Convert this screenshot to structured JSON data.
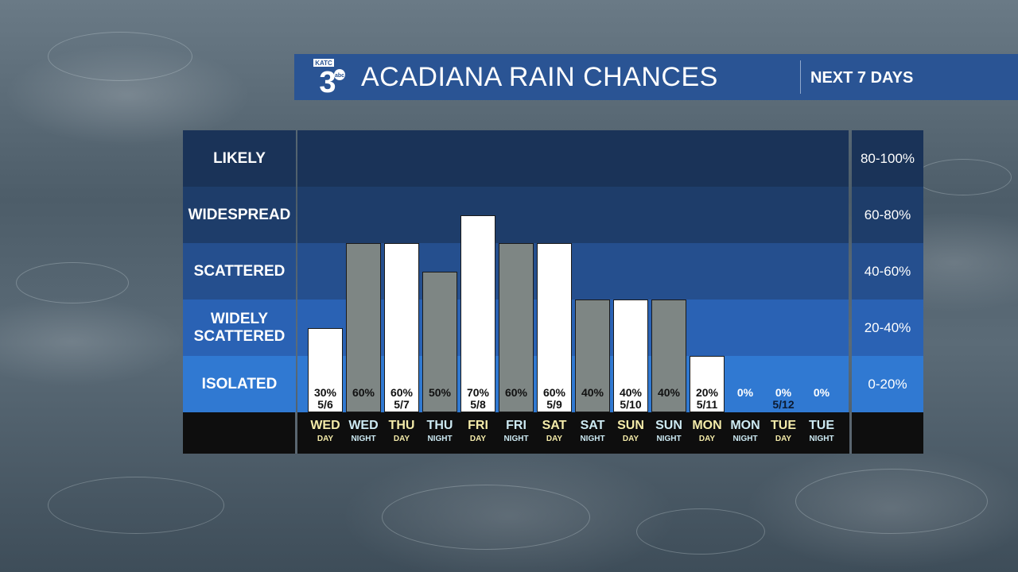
{
  "header": {
    "logo_text": "KATC 3 abc",
    "title": "ACADIANA RAIN CHANCES",
    "subtitle": "NEXT 7 DAYS"
  },
  "colors": {
    "header_bg": "#2a5494",
    "band_likely": "#1a3358",
    "band_widespread": "#1e3d6a",
    "band_scattered": "#254f8e",
    "band_widely_scattered": "#2a62b4",
    "band_isolated": "#3079d2",
    "day_bar": "#ffffff",
    "night_bar": "#7e8684",
    "day_label": "#f4eba9",
    "night_label": "#cdeaf3"
  },
  "chart_data": {
    "type": "bar",
    "title": "ACADIANA RAIN CHANCES",
    "subtitle": "NEXT 7 DAYS",
    "ylim": [
      0,
      100
    ],
    "unit": "%",
    "bands": [
      {
        "label": "LIKELY",
        "range": "80-100%"
      },
      {
        "label": "WIDESPREAD",
        "range": "60-80%"
      },
      {
        "label": "SCATTERED",
        "range": "40-60%"
      },
      {
        "label": "WIDELY SCATTERED",
        "range": "20-40%"
      },
      {
        "label": "ISOLATED",
        "range": "0-20%"
      }
    ],
    "periods": [
      {
        "day": "WED",
        "tod": "DAY",
        "value": 30,
        "label": "30%",
        "date": "5/6"
      },
      {
        "day": "WED",
        "tod": "NIGHT",
        "value": 60,
        "label": "60%",
        "date": ""
      },
      {
        "day": "THU",
        "tod": "DAY",
        "value": 60,
        "label": "60%",
        "date": "5/7"
      },
      {
        "day": "THU",
        "tod": "NIGHT",
        "value": 50,
        "label": "50%",
        "date": ""
      },
      {
        "day": "FRI",
        "tod": "DAY",
        "value": 70,
        "label": "70%",
        "date": "5/8"
      },
      {
        "day": "FRI",
        "tod": "NIGHT",
        "value": 60,
        "label": "60%",
        "date": ""
      },
      {
        "day": "SAT",
        "tod": "DAY",
        "value": 60,
        "label": "60%",
        "date": "5/9"
      },
      {
        "day": "SAT",
        "tod": "NIGHT",
        "value": 40,
        "label": "40%",
        "date": ""
      },
      {
        "day": "SUN",
        "tod": "DAY",
        "value": 40,
        "label": "40%",
        "date": "5/10"
      },
      {
        "day": "SUN",
        "tod": "NIGHT",
        "value": 40,
        "label": "40%",
        "date": ""
      },
      {
        "day": "MON",
        "tod": "DAY",
        "value": 20,
        "label": "20%",
        "date": "5/11"
      },
      {
        "day": "MON",
        "tod": "NIGHT",
        "value": 0,
        "label": "0%",
        "date": ""
      },
      {
        "day": "TUE",
        "tod": "DAY",
        "value": 0,
        "label": "0%",
        "date": "5/12"
      },
      {
        "day": "TUE",
        "tod": "NIGHT",
        "value": 0,
        "label": "0%",
        "date": ""
      }
    ]
  }
}
